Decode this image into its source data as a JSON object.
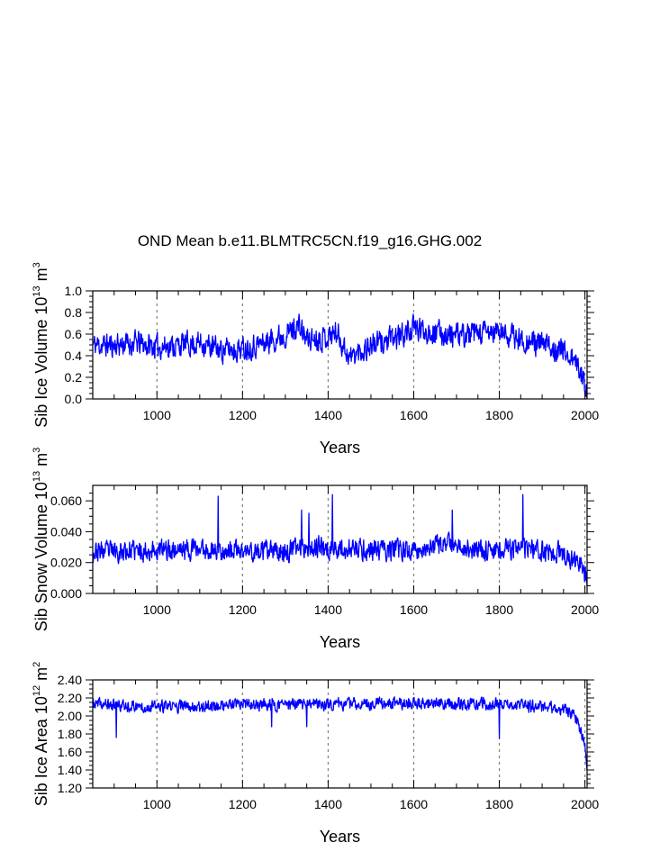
{
  "title": "OND Mean b.e11.BLMTRC5CN.f19_g16.GHG.002",
  "line_color": "#0000ff",
  "grid_color": "#808080",
  "chart_data": [
    {
      "type": "line",
      "name": "sib-ice-volume",
      "xlabel": "Years",
      "ylabel_main": "Sib Ice Volume 10",
      "ylabel_exp": "13",
      "ylabel_unit": "m",
      "ylabel_unit_exp": "3",
      "xlim": [
        850,
        2005
      ],
      "ylim": [
        0,
        1.0
      ],
      "xticks": [
        1000,
        1200,
        1400,
        1600,
        1800,
        2000
      ],
      "yticks": [
        "0.0",
        "0.2",
        "0.4",
        "0.6",
        "0.8",
        "1.0"
      ],
      "grid_x": [
        1000,
        1200,
        1400,
        1600,
        1800,
        2000
      ],
      "anchors": {
        "x": [
          850,
          900,
          950,
          1000,
          1050,
          1100,
          1150,
          1200,
          1250,
          1300,
          1330,
          1350,
          1400,
          1420,
          1450,
          1500,
          1550,
          1600,
          1650,
          1700,
          1750,
          1800,
          1850,
          1900,
          1950,
          1975,
          1990,
          2005
        ],
        "y": [
          0.5,
          0.5,
          0.52,
          0.48,
          0.5,
          0.52,
          0.45,
          0.47,
          0.52,
          0.6,
          0.68,
          0.55,
          0.58,
          0.62,
          0.38,
          0.5,
          0.55,
          0.65,
          0.62,
          0.58,
          0.6,
          0.62,
          0.55,
          0.5,
          0.45,
          0.35,
          0.25,
          0.1
        ]
      },
      "noise": 0.1,
      "seed": 11
    },
    {
      "type": "line",
      "name": "sib-snow-volume",
      "xlabel": "Years",
      "ylabel_main": "Sib Snow Volume 10",
      "ylabel_exp": "13",
      "ylabel_unit": "m",
      "ylabel_unit_exp": "3",
      "xlim": [
        850,
        2005
      ],
      "ylim": [
        0,
        0.07
      ],
      "xticks": [
        1000,
        1200,
        1400,
        1600,
        1800,
        2000
      ],
      "yticks": [
        "0.000",
        "0.020",
        "0.040",
        "0.060"
      ],
      "grid_x": [
        1000,
        1200,
        1400,
        1600,
        1800,
        2000
      ],
      "anchors": {
        "x": [
          850,
          1000,
          1100,
          1200,
          1300,
          1340,
          1400,
          1500,
          1600,
          1690,
          1750,
          1850,
          1950,
          1990,
          2005
        ],
        "y": [
          0.027,
          0.028,
          0.029,
          0.027,
          0.027,
          0.031,
          0.029,
          0.028,
          0.028,
          0.032,
          0.028,
          0.029,
          0.026,
          0.018,
          0.01
        ]
      },
      "noise": 0.006,
      "spikes": [
        [
          1143,
          0.063
        ],
        [
          1338,
          0.054
        ],
        [
          1410,
          0.064
        ],
        [
          1690,
          0.054
        ],
        [
          1855,
          0.064
        ],
        [
          1355,
          0.052
        ]
      ],
      "seed": 23
    },
    {
      "type": "line",
      "name": "sib-ice-area",
      "xlabel": "Years",
      "ylabel_main": "Sib Ice Area 10",
      "ylabel_exp": "12",
      "ylabel_unit": "m",
      "ylabel_unit_exp": "2",
      "xlim": [
        850,
        2005
      ],
      "ylim": [
        1.2,
        2.4
      ],
      "xticks": [
        1000,
        1200,
        1400,
        1600,
        1800,
        2000
      ],
      "yticks": [
        "1.20",
        "1.40",
        "1.60",
        "1.80",
        "2.00",
        "2.20",
        "2.40"
      ],
      "grid_x": [
        1000,
        1200,
        1400,
        1600,
        1800,
        2000
      ],
      "anchors": {
        "x": [
          850,
          1000,
          1200,
          1400,
          1600,
          1800,
          1900,
          1950,
          1975,
          1990,
          2000,
          2005
        ],
        "y": [
          2.13,
          2.1,
          2.12,
          2.13,
          2.14,
          2.13,
          2.1,
          2.08,
          2.0,
          1.85,
          1.65,
          1.4
        ]
      },
      "noise": 0.06,
      "dips": [
        [
          905,
          1.76
        ],
        [
          1268,
          1.88
        ],
        [
          1350,
          1.88
        ],
        [
          1800,
          1.75
        ]
      ],
      "seed": 37
    }
  ]
}
